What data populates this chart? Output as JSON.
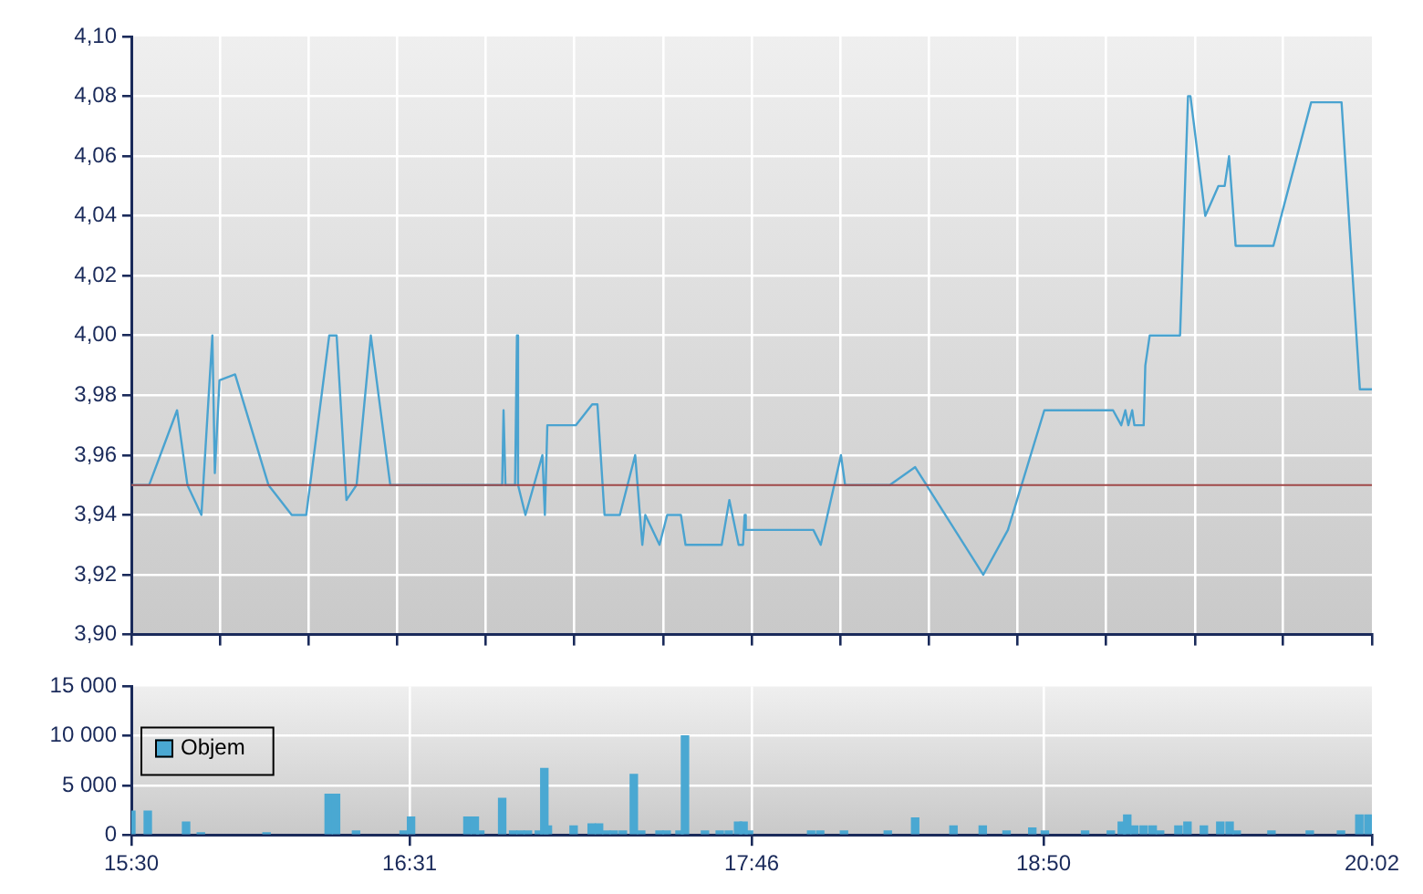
{
  "chart_data": [
    {
      "type": "line",
      "color": "#4aa3d0",
      "x": [
        15.5,
        15.565,
        15.667,
        15.705,
        15.756,
        15.796,
        15.805,
        15.822,
        15.879,
        16.001,
        16.086,
        16.139,
        16.223,
        16.25,
        16.286,
        16.323,
        16.375,
        16.446,
        16.755,
        16.855,
        16.86,
        16.867,
        16.902,
        16.909,
        16.913,
        16.94,
        17.002,
        17.011,
        17.02,
        17.124,
        17.184,
        17.203,
        17.229,
        17.285,
        17.341,
        17.367,
        17.378,
        17.43,
        17.458,
        17.508,
        17.525,
        17.657,
        17.685,
        17.719,
        17.735,
        17.741,
        17.745,
        17.992,
        18.019,
        18.093,
        18.108,
        18.271,
        18.364,
        18.509,
        18.613,
        18.703,
        18.836,
        19.087,
        19.117,
        19.132,
        19.143,
        19.157,
        19.165,
        19.199,
        19.205,
        19.221,
        19.332,
        19.361,
        19.37,
        19.424,
        19.472,
        19.495,
        19.511,
        19.535,
        19.673,
        19.811,
        19.922,
        19.989,
        20.033
      ],
      "values": [
        3.95,
        3.95,
        3.975,
        3.95,
        3.94,
        4.0,
        3.954,
        3.985,
        3.987,
        3.95,
        3.94,
        3.94,
        4.0,
        4.0,
        3.945,
        3.95,
        4.0,
        3.95,
        3.95,
        3.95,
        3.975,
        3.95,
        3.95,
        4.0,
        3.95,
        3.94,
        3.96,
        3.94,
        3.97,
        3.97,
        3.977,
        3.977,
        3.94,
        3.94,
        3.96,
        3.93,
        3.94,
        3.93,
        3.94,
        3.94,
        3.93,
        3.93,
        3.945,
        3.93,
        3.93,
        3.94,
        3.935,
        3.935,
        3.93,
        3.96,
        3.95,
        3.95,
        3.956,
        3.935,
        3.92,
        3.935,
        3.975,
        3.975,
        3.97,
        3.975,
        3.97,
        3.975,
        3.97,
        3.97,
        3.99,
        4.0,
        4.0,
        4.08,
        4.08,
        4.04,
        4.05,
        4.05,
        4.06,
        4.03,
        4.03,
        4.078,
        4.078,
        3.982,
        3.982
      ],
      "xlim": [
        15.5,
        20.033
      ],
      "xticks": [
        {
          "value": 15.5,
          "label": null
        },
        {
          "value": 15.824,
          "label": null
        },
        {
          "value": 16.148,
          "label": null
        },
        {
          "value": 16.471,
          "label": null
        },
        {
          "value": 16.795,
          "label": null
        },
        {
          "value": 17.119,
          "label": null
        },
        {
          "value": 17.443,
          "label": null
        },
        {
          "value": 17.767,
          "label": null
        },
        {
          "value": 18.09,
          "label": null
        },
        {
          "value": 18.414,
          "label": null
        },
        {
          "value": 18.738,
          "label": null
        },
        {
          "value": 19.062,
          "label": null
        },
        {
          "value": 19.386,
          "label": null
        },
        {
          "value": 19.709,
          "label": null
        },
        {
          "value": 20.033,
          "label": null
        }
      ],
      "ylim": [
        3.9,
        4.1
      ],
      "yticks": [
        {
          "value": 3.9,
          "label": "3,90"
        },
        {
          "value": 3.92,
          "label": "3,92"
        },
        {
          "value": 3.94,
          "label": "3,94"
        },
        {
          "value": 3.96,
          "label": "3,96"
        },
        {
          "value": 3.98,
          "label": "3,98"
        },
        {
          "value": 4.0,
          "label": "4,00"
        },
        {
          "value": 4.02,
          "label": "4,02"
        },
        {
          "value": 4.04,
          "label": "4,04"
        },
        {
          "value": 4.06,
          "label": "4,06"
        },
        {
          "value": 4.08,
          "label": "4,08"
        },
        {
          "value": 4.1,
          "label": "4,10"
        }
      ],
      "ref_lines": [
        {
          "axis": "y",
          "value": 3.95,
          "color": "#a04848"
        }
      ],
      "grid": true,
      "tick_labels": "y"
    },
    {
      "type": "bar",
      "x": [
        15.5,
        15.56,
        15.7,
        15.754,
        15.994,
        16.221,
        16.248,
        16.321,
        16.495,
        16.522,
        16.728,
        16.755,
        16.775,
        16.855,
        16.895,
        16.922,
        16.949,
        16.989,
        17.009,
        17.022,
        17.116,
        17.182,
        17.209,
        17.236,
        17.263,
        17.296,
        17.336,
        17.363,
        17.43,
        17.456,
        17.503,
        17.523,
        17.596,
        17.65,
        17.683,
        17.717,
        17.737,
        17.757,
        17.984,
        18.017,
        18.104,
        18.264,
        18.364,
        18.504,
        18.611,
        18.698,
        18.792,
        18.838,
        18.985,
        19.079,
        19.119,
        19.139,
        19.165,
        19.199,
        19.232,
        19.259,
        19.326,
        19.359,
        19.419,
        19.479,
        19.513,
        19.539,
        19.666,
        19.806,
        19.92,
        19.987,
        20.02
      ],
      "series": [
        {
          "name": "Objem",
          "color": "#4aa8d2",
          "values": [
            2400,
            2400,
            1300,
            200,
            200,
            4100,
            4100,
            400,
            400,
            1800,
            1800,
            1800,
            400,
            3700,
            400,
            400,
            400,
            400,
            6700,
            900,
            900,
            1100,
            1100,
            400,
            400,
            400,
            6100,
            400,
            400,
            400,
            400,
            10000,
            400,
            400,
            400,
            1300,
            1300,
            400,
            400,
            400,
            400,
            400,
            1700,
            900,
            900,
            400,
            700,
            400,
            400,
            400,
            1300,
            2000,
            900,
            900,
            900,
            400,
            900,
            1300,
            900,
            1300,
            1300,
            400,
            400,
            400,
            400,
            2000,
            2000
          ]
        }
      ],
      "xlim": [
        15.5,
        20.033
      ],
      "xticks": [
        {
          "value": 15.5,
          "label": "15:30"
        },
        {
          "value": 16.517,
          "label": "16:31"
        },
        {
          "value": 17.767,
          "label": "17:46"
        },
        {
          "value": 18.833,
          "label": "18:50"
        },
        {
          "value": 20.033,
          "label": "20:02"
        }
      ],
      "ylim": [
        0,
        15000
      ],
      "yticks": [
        {
          "value": 0,
          "label": "0"
        },
        {
          "value": 5000,
          "label": "5 000"
        },
        {
          "value": 10000,
          "label": "10 000"
        },
        {
          "value": 15000,
          "label": "15 000"
        }
      ],
      "grid": true,
      "legend": "top left"
    }
  ]
}
